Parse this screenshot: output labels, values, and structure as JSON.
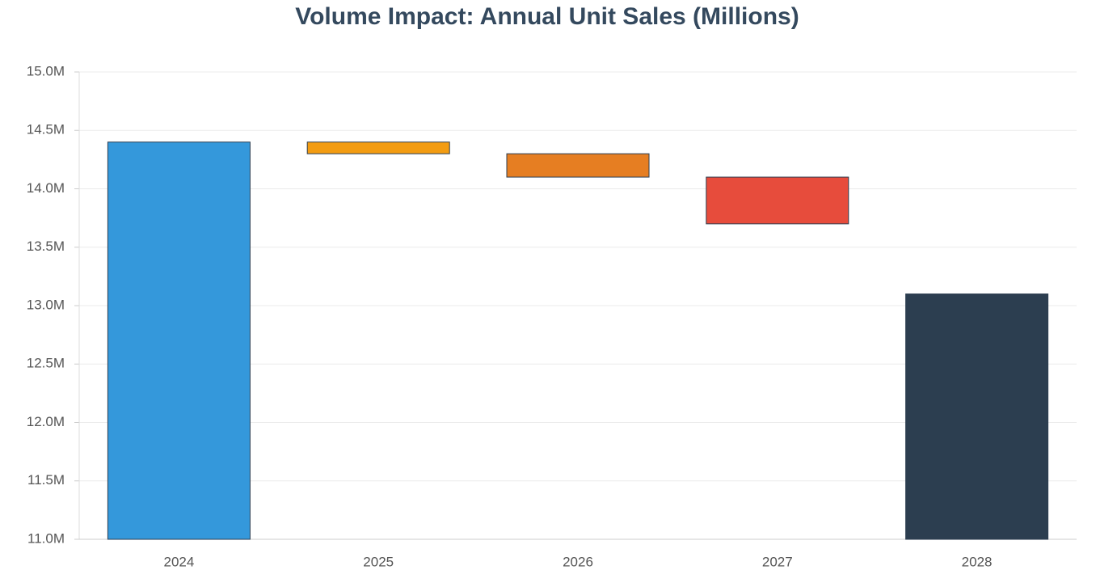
{
  "chart_data": {
    "type": "waterfall",
    "title": "Volume Impact: Annual Unit Sales (Millions)",
    "categories": [
      "2024",
      "2025",
      "2026",
      "2027",
      "2028"
    ],
    "values": [
      14.4,
      -0.1,
      -0.2,
      -0.4,
      13.1
    ],
    "measure": [
      "absolute",
      "relative",
      "relative",
      "relative",
      "absolute"
    ],
    "colors": [
      "#3498db",
      "#f39c12",
      "#e67e22",
      "#e74c3c",
      "#2c3e50"
    ],
    "ylim": [
      11,
      15
    ],
    "yticks": [
      {
        "value": 11,
        "label": "11.0M"
      },
      {
        "value": 11.5,
        "label": "11.5M"
      },
      {
        "value": 12,
        "label": "12.0M"
      },
      {
        "value": 12.5,
        "label": "12.5M"
      },
      {
        "value": 13,
        "label": "13.0M"
      },
      {
        "value": 13.5,
        "label": "13.5M"
      },
      {
        "value": 14,
        "label": "14.0M"
      },
      {
        "value": 14.5,
        "label": "14.5M"
      },
      {
        "value": 15,
        "label": "15.0M"
      }
    ],
    "grid": true
  }
}
